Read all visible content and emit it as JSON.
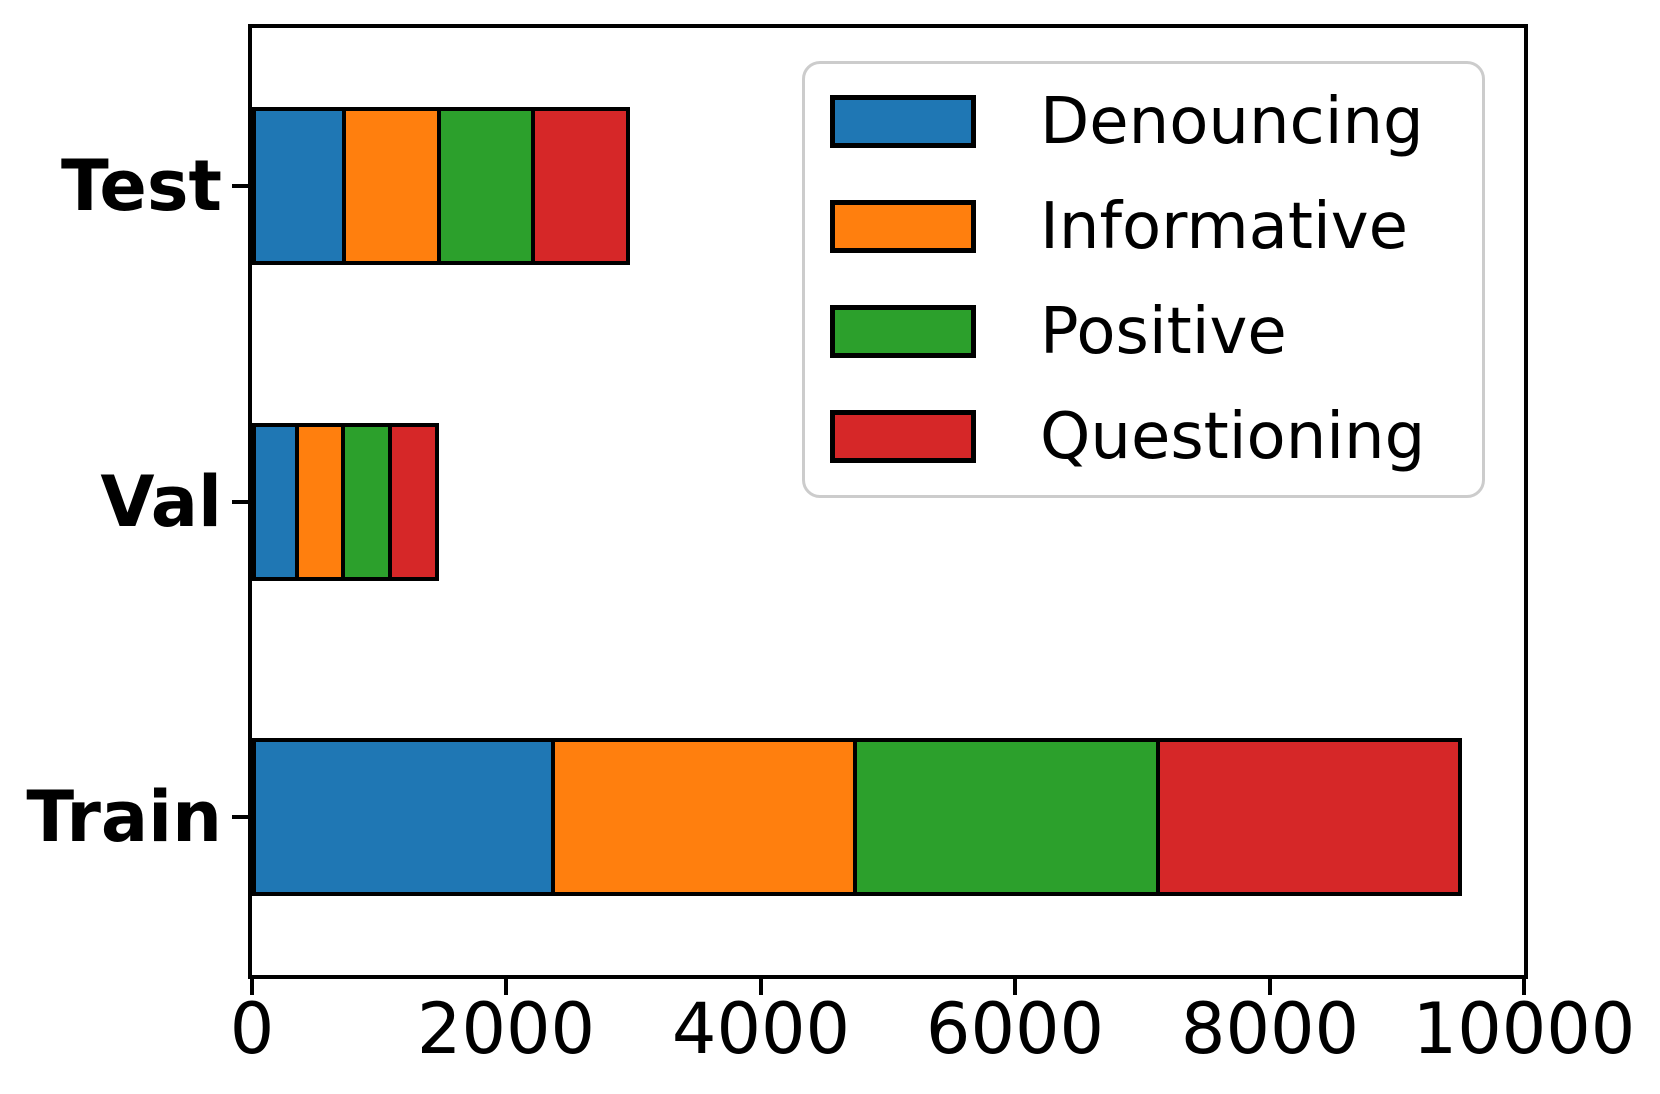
{
  "chart_data": {
    "type": "bar",
    "orientation": "horizontal",
    "stacked": true,
    "title": "",
    "xlabel": "",
    "ylabel": "",
    "categories": [
      "Test",
      "Val",
      "Train"
    ],
    "series": [
      {
        "name": "Denouncing",
        "color": "#1f77b4",
        "values": [
          742,
          367,
          2379
        ]
      },
      {
        "name": "Informative",
        "color": "#ff7f0e",
        "values": [
          742,
          367,
          2379
        ]
      },
      {
        "name": "Positive",
        "color": "#2ca02c",
        "values": [
          742,
          367,
          2379
        ]
      },
      {
        "name": "Questioning",
        "color": "#d62728",
        "values": [
          742,
          367,
          2379
        ]
      }
    ],
    "totals": [
      2968,
      1468,
      9516
    ],
    "xlim": [
      0,
      10000
    ],
    "xticks": [
      0,
      2000,
      4000,
      6000,
      8000,
      10000
    ],
    "xtick_labels": [
      "0",
      "2000",
      "4000",
      "6000",
      "8000",
      "10000"
    ],
    "grid": false,
    "bar_edge_color": "#000000",
    "legend": {
      "position": "upper right",
      "border_color": "#cccccc",
      "entries": [
        "Denouncing",
        "Informative",
        "Positive",
        "Questioning"
      ]
    }
  }
}
